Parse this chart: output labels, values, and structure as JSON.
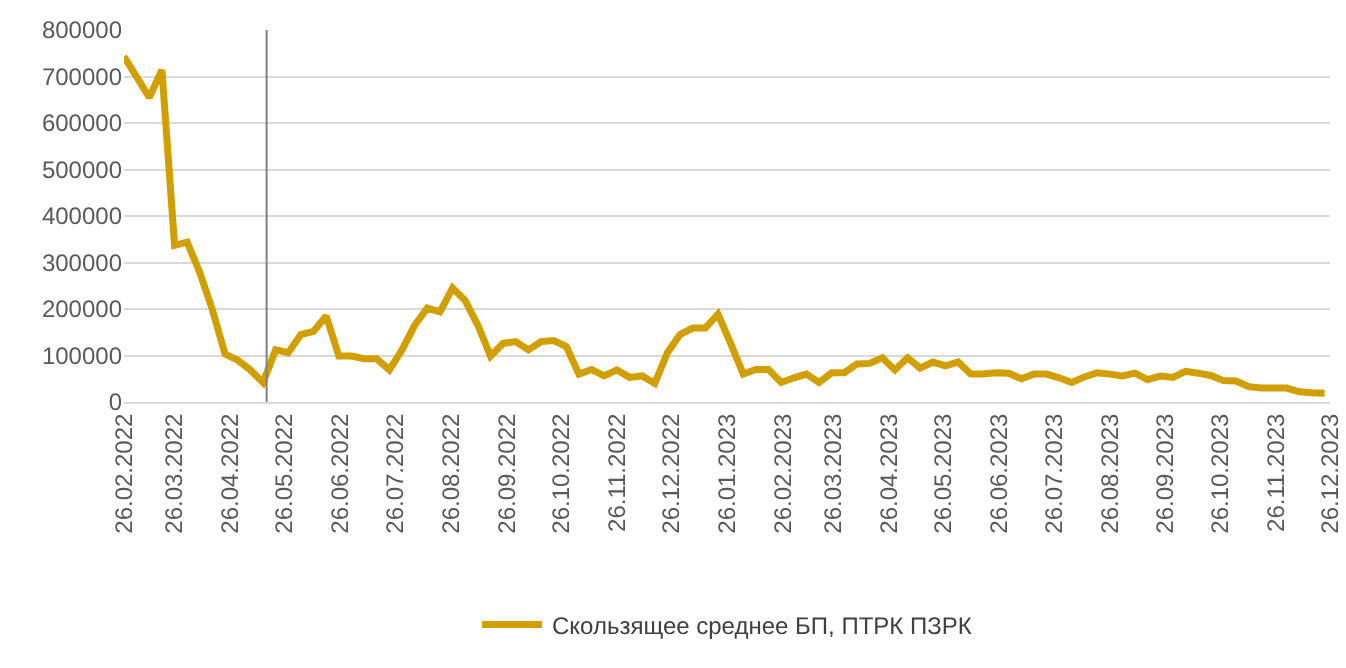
{
  "chart_data": {
    "type": "line",
    "legend": "bottom",
    "grid": "y",
    "marker": "none",
    "line_style": "solid",
    "x": [
      "2022-02-26",
      "2022-03-05",
      "2022-03-12",
      "2022-03-19",
      "2022-03-26",
      "2022-04-02",
      "2022-04-09",
      "2022-04-16",
      "2022-04-23",
      "2022-04-30",
      "2022-05-07",
      "2022-05-14",
      "2022-05-21",
      "2022-05-28",
      "2022-06-04",
      "2022-06-11",
      "2022-06-18",
      "2022-06-25",
      "2022-07-02",
      "2022-07-09",
      "2022-07-16",
      "2022-07-23",
      "2022-07-30",
      "2022-08-06",
      "2022-08-13",
      "2022-08-20",
      "2022-08-27",
      "2022-09-03",
      "2022-09-10",
      "2022-09-17",
      "2022-09-24",
      "2022-10-01",
      "2022-10-08",
      "2022-10-15",
      "2022-10-22",
      "2022-10-29",
      "2022-11-05",
      "2022-11-12",
      "2022-11-19",
      "2022-11-26",
      "2022-12-03",
      "2022-12-10",
      "2022-12-17",
      "2022-12-24",
      "2022-12-31",
      "2023-01-07",
      "2023-01-14",
      "2023-01-21",
      "2023-01-28",
      "2023-02-04",
      "2023-02-11",
      "2023-02-18",
      "2023-02-25",
      "2023-03-04",
      "2023-03-11",
      "2023-03-18",
      "2023-03-25",
      "2023-04-01",
      "2023-04-08",
      "2023-04-15",
      "2023-04-22",
      "2023-04-29",
      "2023-05-06",
      "2023-05-13",
      "2023-05-20",
      "2023-05-27",
      "2023-06-03",
      "2023-06-10",
      "2023-06-17",
      "2023-06-24",
      "2023-07-01",
      "2023-07-08",
      "2023-07-15",
      "2023-07-22",
      "2023-07-29",
      "2023-08-05",
      "2023-08-12",
      "2023-08-19",
      "2023-08-26",
      "2023-09-02",
      "2023-09-09",
      "2023-09-16",
      "2023-09-23",
      "2023-09-30",
      "2023-10-07",
      "2023-10-14",
      "2023-10-21",
      "2023-10-28",
      "2023-11-04",
      "2023-11-11",
      "2023-11-18",
      "2023-11-25",
      "2023-12-02",
      "2023-12-09",
      "2023-12-16",
      "2023-12-23"
    ],
    "series": [
      {
        "name": "Скользящее среднее БП, ПТРК ПЗРК",
        "color": "#d19f00",
        "values": [
          743000,
          699000,
          655000,
          714000,
          337000,
          344000,
          278000,
          198000,
          103000,
          90000,
          69000,
          42000,
          112000,
          106000,
          145000,
          152000,
          185000,
          99000,
          99000,
          93000,
          93000,
          69000,
          112000,
          165000,
          202000,
          194000,
          245000,
          218000,
          165000,
          99000,
          126000,
          130000,
          112000,
          130000,
          132000,
          119000,
          60000,
          70000,
          56000,
          69000,
          53000,
          56000,
          40000,
          106000,
          145000,
          159000,
          159000,
          189000,
          126000,
          60000,
          70000,
          70000,
          42000,
          52000,
          60000,
          42000,
          63000,
          63000,
          82000,
          83000,
          95000,
          69000,
          95000,
          73000,
          86000,
          78000,
          86000,
          60000,
          60000,
          63000,
          62000,
          50000,
          60000,
          60000,
          52000,
          42000,
          54000,
          63000,
          60000,
          56000,
          62000,
          48000,
          56000,
          53000,
          66000,
          62000,
          57000,
          46000,
          45000,
          33000,
          30000,
          30000,
          30000,
          22000,
          20000,
          19000
        ]
      }
    ],
    "ylim": [
      0,
      800000
    ],
    "yticks": [
      0,
      100000,
      200000,
      300000,
      400000,
      500000,
      600000,
      700000,
      800000
    ],
    "xlim": [
      "2022-02-26",
      "2023-12-26"
    ],
    "xticks": [
      {
        "value": "2022-02-26",
        "label": "26.02.2022"
      },
      {
        "value": "2022-03-26",
        "label": "26.03.2022"
      },
      {
        "value": "2022-04-26",
        "label": "26.04.2022"
      },
      {
        "value": "2022-05-26",
        "label": "26.05.2022"
      },
      {
        "value": "2022-06-26",
        "label": "26.06.2022"
      },
      {
        "value": "2022-07-26",
        "label": "26.07.2022"
      },
      {
        "value": "2022-08-26",
        "label": "26.08.2022"
      },
      {
        "value": "2022-09-26",
        "label": "26.09.2022"
      },
      {
        "value": "2022-10-26",
        "label": "26.10.2022"
      },
      {
        "value": "2022-11-26",
        "label": "26.11.2022"
      },
      {
        "value": "2022-12-26",
        "label": "26.12.2022"
      },
      {
        "value": "2023-01-26",
        "label": "26.01.2023"
      },
      {
        "value": "2023-02-26",
        "label": "26.02.2023"
      },
      {
        "value": "2023-03-26",
        "label": "26.03.2023"
      },
      {
        "value": "2023-04-26",
        "label": "26.04.2023"
      },
      {
        "value": "2023-05-26",
        "label": "26.05.2023"
      },
      {
        "value": "2023-06-26",
        "label": "26.06.2023"
      },
      {
        "value": "2023-07-26",
        "label": "26.07.2023"
      },
      {
        "value": "2023-08-26",
        "label": "26.08.2023"
      },
      {
        "value": "2023-09-26",
        "label": "26.09.2023"
      },
      {
        "value": "2023-10-26",
        "label": "26.10.2023"
      },
      {
        "value": "2023-11-26",
        "label": "26.11.2023"
      },
      {
        "value": "2023-12-26",
        "label": "26.12.2023"
      }
    ],
    "ref_lines": [
      {
        "axis": "x",
        "value": "2022-05-16",
        "color": "#7f7f7f"
      }
    ]
  }
}
